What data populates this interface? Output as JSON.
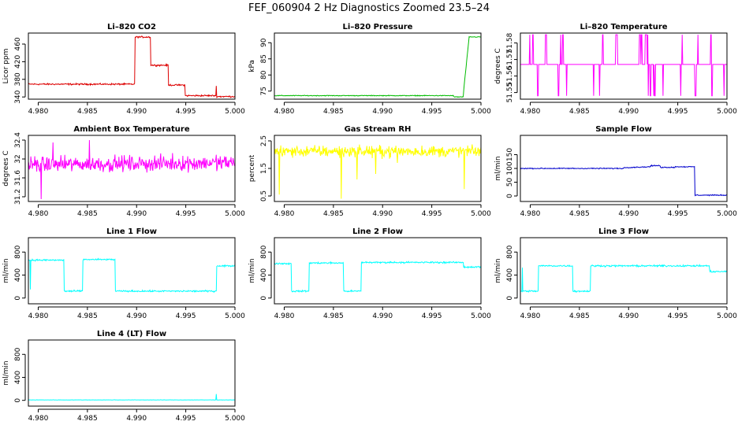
{
  "page": {
    "title": "FEF_060904  2 Hz Diagnostics Zoomed 23.5–24"
  },
  "chart_data": [
    {
      "type": "line",
      "title": "Li–820 CO2",
      "ylabel": "Licor ppm",
      "color": "#dd0000",
      "xlim": [
        4.979,
        5.0
      ],
      "ylim": [
        335,
        485
      ],
      "xticks": [
        "4.980",
        "4.985",
        "4.990",
        "4.995",
        "5.000"
      ],
      "yticks": [
        340,
        380,
        420,
        460
      ],
      "signal": {
        "noise": 1.5,
        "segments": [
          [
            4.979,
            4.9898,
            369,
            369
          ],
          [
            4.9898,
            4.9914,
            476,
            476
          ],
          [
            4.9914,
            4.9932,
            412,
            412
          ],
          [
            4.9932,
            4.9949,
            367,
            367
          ],
          [
            4.9949,
            4.9981,
            343,
            343
          ],
          [
            4.9981,
            5.0,
            341,
            341
          ]
        ],
        "spikes": [
          [
            4.9981,
            365
          ]
        ]
      }
    },
    {
      "type": "line",
      "title": "Li–820 Pressure",
      "ylabel": "kPa",
      "color": "#00bb00",
      "xlim": [
        4.979,
        5.0
      ],
      "ylim": [
        72.5,
        93
      ],
      "xticks": [
        "4.980",
        "4.985",
        "4.990",
        "4.995",
        "5.000"
      ],
      "yticks": [
        75,
        80,
        85,
        90
      ],
      "signal": {
        "noise": 0.1,
        "segments": [
          [
            4.979,
            4.9972,
            73.6,
            73.6
          ],
          [
            4.9972,
            4.9982,
            73.2,
            73.2
          ],
          [
            4.9982,
            4.9988,
            74,
            91.8
          ],
          [
            4.9988,
            5.0,
            91.8,
            91.8
          ]
        ],
        "spikes": []
      }
    },
    {
      "type": "line",
      "title": "Li–820 Temperature",
      "ylabel": "degrees C",
      "color": "#ff00ff",
      "xlim": [
        4.979,
        5.0
      ],
      "ylim": [
        51.546,
        51.586
      ],
      "xticks": [
        "4.980",
        "4.985",
        "4.990",
        "4.995",
        "5.000"
      ],
      "yticks": [
        51.55,
        51.56,
        51.57,
        51.58
      ],
      "signal": {
        "levels": [
          51.548,
          51.567,
          51.585
        ],
        "base": 51.567,
        "switch_prob": 0.11
      }
    },
    {
      "type": "line",
      "title": "Ambient Box Temperature",
      "ylabel": "degrees C",
      "color": "#ff00ff",
      "xlim": [
        4.979,
        5.0
      ],
      "ylim": [
        31.1,
        32.5
      ],
      "xticks": [
        "4.980",
        "4.985",
        "4.990",
        "4.995",
        "5.000"
      ],
      "yticks": [
        31.2,
        31.6,
        32.0,
        32.4
      ],
      "signal": {
        "noise": 0.14,
        "segments": [
          [
            4.979,
            5.0,
            31.88,
            31.92
          ]
        ],
        "spikes": [
          [
            4.9803,
            31.15
          ],
          [
            4.9815,
            32.35
          ],
          [
            4.9852,
            32.4
          ]
        ]
      }
    },
    {
      "type": "line",
      "title": "Gas Stream RH",
      "ylabel": "percent",
      "color": "#ffff00",
      "xlim": [
        4.979,
        5.0
      ],
      "ylim": [
        0.3,
        2.7
      ],
      "xticks": [
        "4.980",
        "4.985",
        "4.990",
        "4.995",
        "5.000"
      ],
      "yticks": [
        0.5,
        1.5,
        2.5
      ],
      "signal": {
        "noise": 0.18,
        "segments": [
          [
            4.979,
            5.0,
            2.12,
            2.12
          ]
        ],
        "spikes": [
          [
            4.9795,
            0.55
          ],
          [
            4.9858,
            0.4
          ],
          [
            4.9874,
            1.1
          ],
          [
            4.9893,
            1.3
          ],
          [
            4.9915,
            1.7
          ],
          [
            4.9983,
            0.75
          ]
        ]
      }
    },
    {
      "type": "line",
      "title": "Sample Flow",
      "ylabel": "ml/min",
      "color": "#0000cc",
      "xlim": [
        4.979,
        5.0
      ],
      "ylim": [
        -20,
        220
      ],
      "xticks": [
        "4.980",
        "4.985",
        "4.990",
        "4.995",
        "5.000"
      ],
      "yticks": [
        0,
        50,
        100,
        150
      ],
      "signal": {
        "noise": 1.5,
        "segments": [
          [
            4.979,
            4.9895,
            100,
            100
          ],
          [
            4.9895,
            4.9922,
            103,
            106
          ],
          [
            4.9922,
            4.9932,
            110,
            110
          ],
          [
            4.9932,
            4.9947,
            104,
            104
          ],
          [
            4.9947,
            4.9967,
            106,
            106
          ],
          [
            4.9967,
            5.0,
            3,
            3
          ]
        ],
        "spikes": []
      }
    },
    {
      "type": "line",
      "title": "Line 1 Flow",
      "ylabel": "ml/min",
      "color": "#00ffff",
      "xlim": [
        4.979,
        5.0
      ],
      "ylim": [
        -100,
        1050
      ],
      "xticks": [
        "4.980",
        "4.985",
        "4.990",
        "4.995",
        "5.000"
      ],
      "yticks": [
        0,
        400,
        800
      ],
      "signal": {
        "noise": 12,
        "segments": [
          [
            4.979,
            4.9826,
            660,
            660
          ],
          [
            4.9826,
            4.9845,
            120,
            120
          ],
          [
            4.9845,
            4.9878,
            670,
            670
          ],
          [
            4.9878,
            4.9981,
            120,
            120
          ],
          [
            4.9981,
            5.0,
            560,
            560
          ]
        ],
        "spikes": [
          [
            4.9792,
            150
          ]
        ]
      }
    },
    {
      "type": "line",
      "title": "Line 2 Flow",
      "ylabel": "ml/min",
      "color": "#00ffff",
      "xlim": [
        4.979,
        5.0
      ],
      "ylim": [
        -100,
        1050
      ],
      "xticks": [
        "4.980",
        "4.985",
        "4.990",
        "4.995",
        "5.000"
      ],
      "yticks": [
        0,
        400,
        800
      ],
      "signal": {
        "noise": 12,
        "segments": [
          [
            4.979,
            4.9807,
            600,
            600
          ],
          [
            4.9807,
            4.9825,
            120,
            120
          ],
          [
            4.9825,
            4.986,
            610,
            610
          ],
          [
            4.986,
            4.9878,
            120,
            120
          ],
          [
            4.9878,
            4.9982,
            620,
            620
          ],
          [
            4.9982,
            5.0,
            540,
            540
          ]
        ],
        "spikes": []
      }
    },
    {
      "type": "line",
      "title": "Line 3 Flow",
      "ylabel": "ml/min",
      "color": "#00ffff",
      "xlim": [
        4.979,
        5.0
      ],
      "ylim": [
        -100,
        1050
      ],
      "xticks": [
        "4.980",
        "4.985",
        "4.990",
        "4.995",
        "5.000"
      ],
      "yticks": [
        0,
        400,
        800
      ],
      "signal": {
        "noise": 12,
        "segments": [
          [
            4.979,
            4.9808,
            120,
            120
          ],
          [
            4.9808,
            4.9843,
            560,
            560
          ],
          [
            4.9843,
            4.9861,
            120,
            120
          ],
          [
            4.9861,
            4.9982,
            560,
            560
          ],
          [
            4.9982,
            5.0,
            460,
            460
          ]
        ],
        "spikes": [
          [
            4.9792,
            530
          ]
        ]
      }
    },
    {
      "type": "line",
      "title": "Line 4 (LT) Flow",
      "ylabel": "ml/min",
      "color": "#00ffff",
      "xlim": [
        4.979,
        5.0
      ],
      "ylim": [
        -100,
        1050
      ],
      "xticks": [
        "4.980",
        "4.985",
        "4.990",
        "4.995",
        "5.000"
      ],
      "yticks": [
        0,
        400,
        800
      ],
      "signal": {
        "noise": 2,
        "segments": [
          [
            4.979,
            5.0,
            8,
            8
          ]
        ],
        "spikes": [
          [
            4.9981,
            110
          ]
        ]
      }
    }
  ]
}
